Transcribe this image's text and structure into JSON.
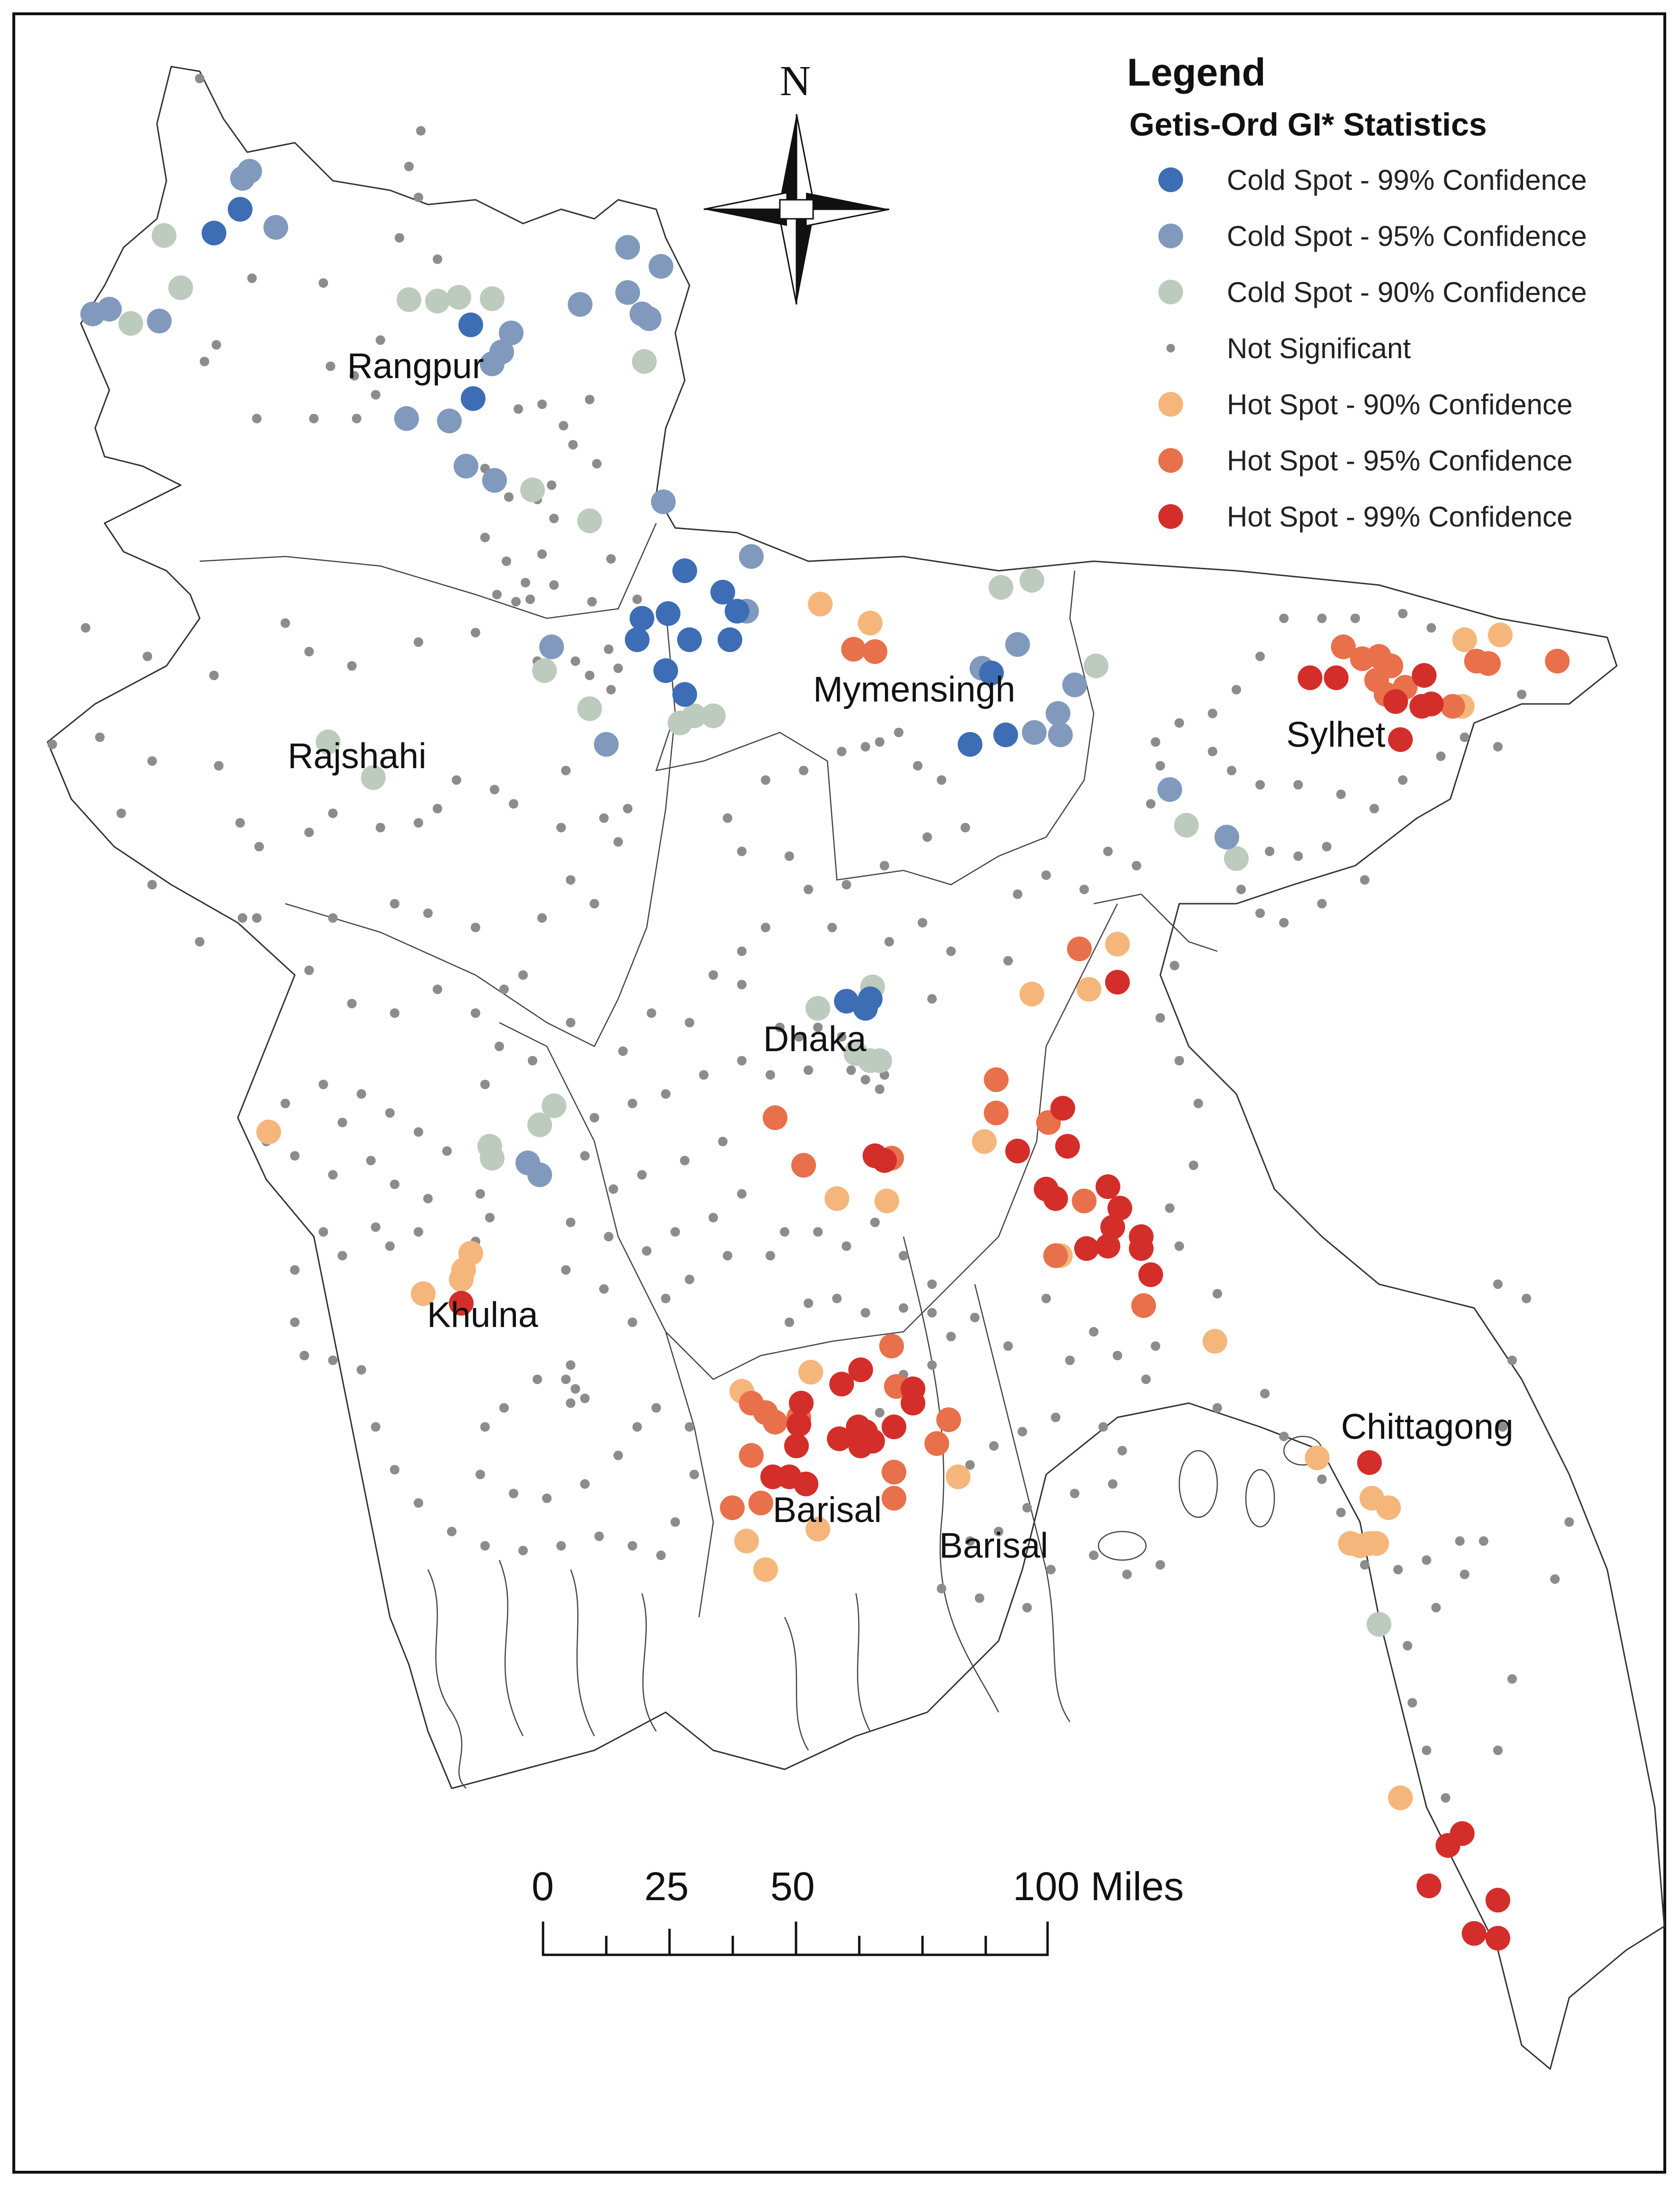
{
  "legend": {
    "title": "Legend",
    "subtitle": "Getis-Ord GI* Statistics",
    "items": [
      {
        "label": "Cold Spot - 99% Confidence",
        "color": "#3d6db5",
        "class": "cold99"
      },
      {
        "label": "Cold Spot - 95% Confidence",
        "color": "#8099bd",
        "class": "cold95"
      },
      {
        "label": "Cold Spot - 90% Confidence",
        "color": "#bccbbd",
        "class": "cold90"
      },
      {
        "label": "Not Significant",
        "color": "#8c8c8c",
        "class": "ns"
      },
      {
        "label": "Hot Spot - 90% Confidence",
        "color": "#f5b67c",
        "class": "hot90"
      },
      {
        "label": "Hot Spot - 95% Confidence",
        "color": "#e8704a",
        "class": "hot95"
      },
      {
        "label": "Hot Spot - 99% Confidence",
        "color": "#d42e2a",
        "class": "hot99"
      }
    ]
  },
  "north_arrow": {
    "label": "N"
  },
  "scale_bar": {
    "labels": [
      "0",
      "25",
      "50",
      "100 Miles"
    ]
  },
  "regions": [
    "Rangpur",
    "Rajshahi",
    "Mymensingh",
    "Sylhet",
    "Dhaka",
    "Khulna",
    "Barisal",
    "Barisal",
    "Chittagong"
  ]
}
